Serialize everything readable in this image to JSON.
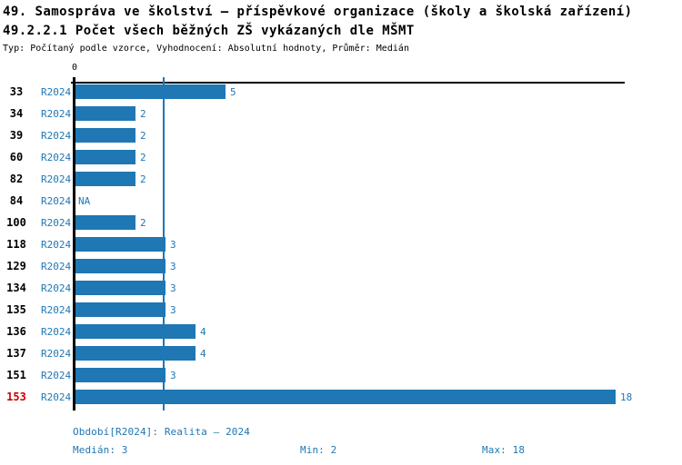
{
  "header": {
    "title": "49. Samospráva ve školství – příspěvkové organizace (školy a školská zařízení)",
    "subtitle": "49.2.2.1 Počet všech běžných ZŠ vykázaných dle MŠMT",
    "meta": "Typ: Počítaný podle vzorce, Vyhodnocení: Absolutní hodnoty, Průměr: Medián"
  },
  "chart_data": {
    "type": "bar",
    "orientation": "horizontal",
    "title": "49.2.2.1 Počet všech běžných ZŠ vykázaných dle MŠMT",
    "categories": [
      "33",
      "34",
      "39",
      "60",
      "82",
      "84",
      "100",
      "118",
      "129",
      "134",
      "135",
      "136",
      "137",
      "151",
      "153"
    ],
    "series": [
      {
        "name": "R2024",
        "values": [
          5,
          2,
          2,
          2,
          2,
          null,
          2,
          3,
          3,
          3,
          3,
          4,
          4,
          3,
          18
        ],
        "value_labels": [
          "5",
          "2",
          "2",
          "2",
          "2",
          "NA",
          "2",
          "3",
          "3",
          "3",
          "3",
          "4",
          "4",
          "3",
          "18"
        ]
      }
    ],
    "series_tag": "R2024",
    "highlighted_category": "153",
    "axis": {
      "zero_label": "0",
      "xmin": 0,
      "xmax": 18
    },
    "median_value": 3,
    "legend_position": "none",
    "grid": false,
    "colors": {
      "bar": "#1f77b4",
      "blue_text": "#1f77b4",
      "highlight_text": "#cc0000",
      "axis": "#000000"
    }
  },
  "footer": {
    "period": "Období[R2024]: Realita – 2024",
    "median": "Medián: 3",
    "min": "Min: 2",
    "max": "Max: 18"
  }
}
